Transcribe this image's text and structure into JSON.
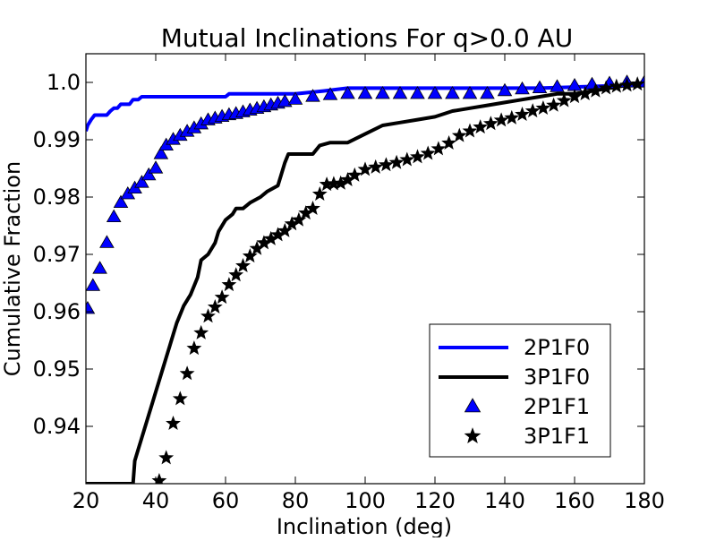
{
  "chart_data": {
    "type": "line",
    "title": "Mutual Inclinations For q>0.0 AU",
    "xlabel": "Inclination (deg)",
    "ylabel": "Cumulative Fraction",
    "xlim": [
      20,
      180
    ],
    "ylim": [
      0.93,
      1.005
    ],
    "xticks": [
      20,
      40,
      60,
      80,
      100,
      120,
      140,
      160,
      180
    ],
    "yticks": [
      0.94,
      0.95,
      0.96,
      0.97,
      0.98,
      0.99,
      1.0
    ],
    "ytick_labels": [
      "0.94",
      "0.95",
      "0.96",
      "0.97",
      "0.98",
      "0.99",
      "1.0"
    ],
    "grid": false,
    "legend_position": "lower-right",
    "colors": {
      "blue": "#0000ff",
      "black": "#000000",
      "marker_blue": "#0000ff"
    },
    "series": [
      {
        "name": "2P1F0",
        "style": "line",
        "color": "#0000ff",
        "x": [
          20,
          20.5,
          21.5,
          22.5,
          26,
          27,
          28,
          29,
          30,
          31,
          32.5,
          33.5,
          35,
          36,
          39,
          60,
          61,
          80,
          88,
          95,
          100,
          110,
          120,
          130,
          140,
          150,
          160,
          170,
          180
        ],
        "y": [
          0.9915,
          0.9925,
          0.9935,
          0.9943,
          0.9943,
          0.995,
          0.9955,
          0.9955,
          0.9962,
          0.9962,
          0.9962,
          0.997,
          0.997,
          0.9975,
          0.9975,
          0.9975,
          0.998,
          0.998,
          0.9985,
          0.999,
          0.999,
          0.999,
          0.999,
          0.999,
          0.999,
          0.999,
          0.9992,
          0.9994,
          0.9996
        ]
      },
      {
        "name": "3P1F0",
        "style": "line",
        "color": "#000000",
        "x": [
          20,
          33.5,
          34,
          35,
          36,
          37,
          38,
          39,
          40,
          41,
          42,
          43,
          44,
          45,
          46,
          48,
          50,
          52,
          53,
          55,
          57,
          58,
          60,
          62,
          63,
          65,
          67,
          70,
          72,
          75,
          76,
          77,
          78,
          80,
          85,
          87,
          90,
          95,
          100,
          105,
          110,
          115,
          120,
          125,
          130,
          135,
          140,
          145,
          150,
          155,
          160,
          165,
          170,
          175,
          180
        ],
        "y": [
          0.93,
          0.93,
          0.934,
          0.936,
          0.938,
          0.94,
          0.942,
          0.944,
          0.946,
          0.948,
          0.95,
          0.952,
          0.954,
          0.956,
          0.958,
          0.961,
          0.963,
          0.966,
          0.969,
          0.97,
          0.972,
          0.974,
          0.976,
          0.977,
          0.978,
          0.978,
          0.979,
          0.98,
          0.981,
          0.982,
          0.984,
          0.986,
          0.9875,
          0.9875,
          0.9875,
          0.989,
          0.9895,
          0.9895,
          0.991,
          0.9925,
          0.993,
          0.9935,
          0.994,
          0.995,
          0.9955,
          0.996,
          0.9965,
          0.997,
          0.9975,
          0.998,
          0.998,
          0.9985,
          0.999,
          0.9995,
          1.0
        ]
      },
      {
        "name": "2P1F1",
        "style": "markers",
        "marker": "triangle",
        "color": "#0000ff",
        "x": [
          20.5,
          22,
          24,
          26,
          28,
          30,
          32,
          34,
          36,
          38,
          40,
          41.5,
          43,
          45,
          47,
          49,
          51,
          53,
          55,
          57,
          59,
          61,
          63,
          65,
          67,
          69,
          71,
          73,
          75,
          77,
          80,
          85,
          90,
          95,
          100,
          105,
          110,
          115,
          120,
          125,
          130,
          135,
          140,
          145,
          150,
          155,
          160,
          165,
          170,
          175,
          180
        ],
        "y": [
          0.9605,
          0.9645,
          0.9675,
          0.972,
          0.9765,
          0.979,
          0.9805,
          0.9815,
          0.9825,
          0.9838,
          0.985,
          0.9875,
          0.989,
          0.99,
          0.9907,
          0.9914,
          0.992,
          0.9927,
          0.9934,
          0.9937,
          0.994,
          0.9943,
          0.9945,
          0.9948,
          0.9951,
          0.9954,
          0.9957,
          0.996,
          0.9963,
          0.9966,
          0.997,
          0.9975,
          0.9978,
          0.998,
          0.998,
          0.998,
          0.998,
          0.998,
          0.998,
          0.998,
          0.998,
          0.998,
          0.9985,
          0.9988,
          0.999,
          0.9992,
          0.9994,
          0.9996,
          0.9998,
          1.0,
          1.0
        ]
      },
      {
        "name": "3P1F1",
        "style": "markers",
        "marker": "star",
        "color": "#000000",
        "x": [
          41,
          43,
          45,
          47,
          49,
          51,
          53,
          55,
          57,
          59,
          61,
          63,
          65,
          67,
          69,
          71,
          73,
          75,
          77,
          79,
          81,
          83,
          85,
          87,
          89,
          91,
          93,
          95,
          97,
          100,
          103,
          106,
          109,
          112,
          115,
          118,
          121,
          124,
          127,
          130,
          133,
          136,
          139,
          142,
          145,
          148,
          151,
          154,
          157,
          160,
          163,
          166,
          169,
          172,
          175,
          178
        ],
        "y": [
          0.9305,
          0.9345,
          0.9405,
          0.9448,
          0.9492,
          0.9536,
          0.9563,
          0.9592,
          0.9608,
          0.9625,
          0.9647,
          0.9664,
          0.968,
          0.9697,
          0.971,
          0.972,
          0.9727,
          0.9734,
          0.9741,
          0.9753,
          0.976,
          0.9772,
          0.978,
          0.9805,
          0.9822,
          0.9823,
          0.9824,
          0.983,
          0.9838,
          0.9848,
          0.9852,
          0.9856,
          0.986,
          0.9865,
          0.987,
          0.9876,
          0.9884,
          0.9894,
          0.9907,
          0.9915,
          0.9922,
          0.9928,
          0.9934,
          0.9938,
          0.9944,
          0.995,
          0.9955,
          0.996,
          0.9968,
          0.9975,
          0.998,
          0.9985,
          0.999,
          0.9993,
          0.9995,
          0.9997
        ]
      }
    ]
  }
}
